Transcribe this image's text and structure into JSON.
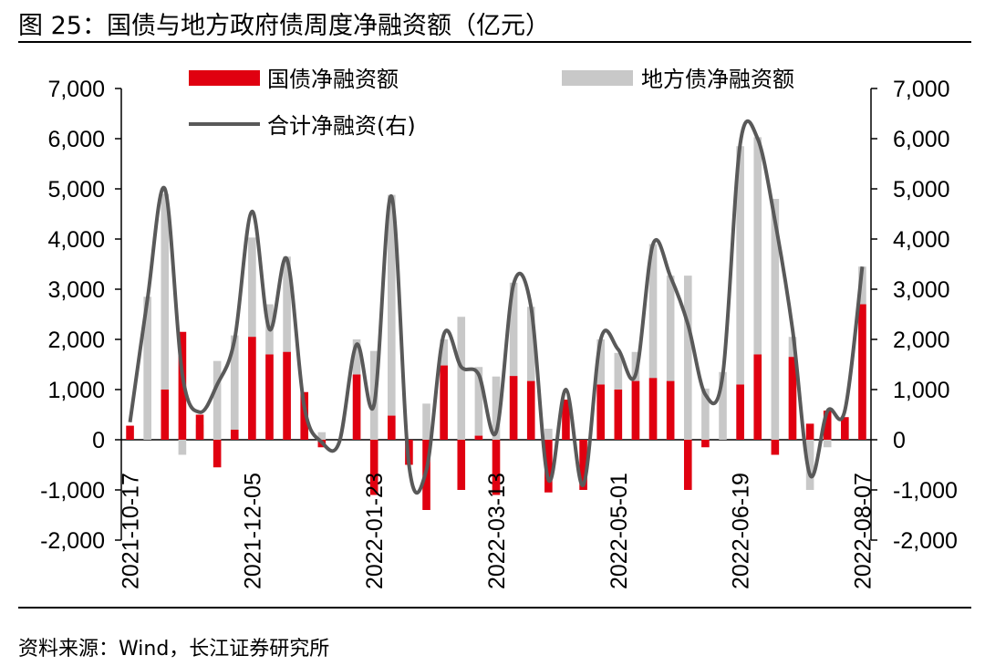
{
  "header": {
    "title": "图 25：国债与地方政府债周度净融资额（亿元）"
  },
  "footer": {
    "source": "资料来源：Wind，长江证券研究所"
  },
  "colors": {
    "guozhai": "#e00010",
    "difang": "#c8c8c8",
    "total": "#595959"
  },
  "chart_data": {
    "type": "bar",
    "title": "国债与地方政府债周度净融资额（亿元）",
    "ylim": [
      -2000,
      7000
    ],
    "y2lim": [
      -2000,
      7000
    ],
    "yticks": [
      -2000,
      -1000,
      0,
      1000,
      2000,
      3000,
      4000,
      5000,
      6000,
      7000
    ],
    "ytick_labels": [
      "-2,000",
      "-1,000",
      "0",
      "1,000",
      "2,000",
      "3,000",
      "4,000",
      "5,000",
      "6,000",
      "7,000"
    ],
    "x_tick_labels": [
      "2021-10-17",
      "2021-12-05",
      "2022-01-23",
      "2022-03-13",
      "2022-05-01",
      "2022-06-19",
      "2022-08-07"
    ],
    "x_tick_indices": [
      0,
      7,
      14,
      21,
      28,
      35,
      42
    ],
    "legend": [
      "国债净融资额",
      "地方债净融资额",
      "合计净融资(右)"
    ],
    "series": [
      {
        "name": "国债净融资额",
        "kind": "bar",
        "values": [
          280,
          0,
          1000,
          2150,
          500,
          -550,
          200,
          2050,
          1700,
          1750,
          950,
          -150,
          0,
          1300,
          -1100,
          480,
          -500,
          -1400,
          1480,
          -1000,
          80,
          -1100,
          1270,
          1170,
          -1050,
          800,
          -1000,
          1100,
          1000,
          1170,
          1230,
          1170,
          -1000,
          -150,
          0,
          1100,
          1700,
          -300,
          1650,
          320,
          580,
          450,
          2700
        ]
      },
      {
        "name": "地方债净融资额",
        "kind": "bar",
        "values": [
          0,
          2850,
          4900,
          -300,
          300,
          1570,
          2080,
          4030,
          2700,
          3650,
          750,
          150,
          0,
          2000,
          1770,
          4880,
          0,
          720,
          2000,
          2450,
          1450,
          1260,
          3130,
          2650,
          220,
          0,
          0,
          2000,
          1730,
          1750,
          3900,
          3270,
          3270,
          1020,
          1350,
          5850,
          6030,
          4800,
          2050,
          -1000,
          -150,
          450,
          3450
        ]
      },
      {
        "name": "合计净融资(右)",
        "kind": "line",
        "values": [
          350,
          2800,
          5000,
          1300,
          550,
          1100,
          2000,
          4550,
          2200,
          3600,
          650,
          -50,
          -50,
          1900,
          700,
          4850,
          -500,
          -600,
          2100,
          1450,
          1300,
          150,
          3100,
          2650,
          -800,
          1000,
          -900,
          2000,
          1800,
          1300,
          3900,
          3250,
          2300,
          900,
          1300,
          5900,
          6000,
          4350,
          2200,
          -700,
          570,
          580,
          3450
        ]
      }
    ]
  }
}
